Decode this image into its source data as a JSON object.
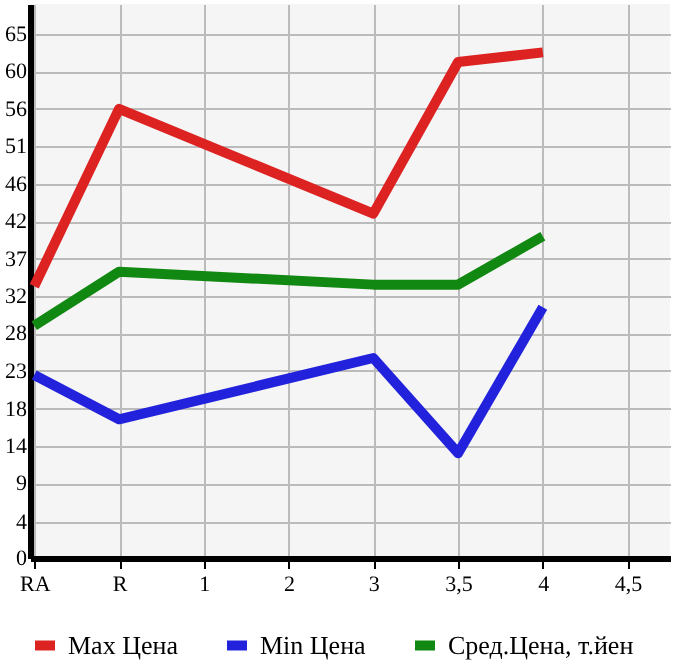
{
  "chart_data": {
    "type": "line",
    "categories": [
      "RA",
      "R",
      "1",
      "2",
      "3",
      "3,5",
      "4",
      "4,5"
    ],
    "series": [
      {
        "name": "Max Цена",
        "color": "#dd2222",
        "values": [
          33.7,
          55.7,
          null,
          null,
          42.7,
          61.5,
          62.7,
          null
        ]
      },
      {
        "name": "Min Цена",
        "color": "#2222dd",
        "values": [
          22.7,
          17.2,
          null,
          null,
          24.8,
          13.0,
          31.1,
          null
        ]
      },
      {
        "name": "Сред.Цена, т.йен",
        "color": "#118811",
        "values": [
          28.8,
          35.5,
          null,
          null,
          33.9,
          33.9,
          39.9,
          null
        ]
      }
    ],
    "ylim": [
      0,
      68.7
    ],
    "yticks": [
      0,
      {
        "value": 4.49,
        "label": "4"
      },
      {
        "value": 9.29,
        "label": "9"
      },
      {
        "value": 13.93,
        "label": "14"
      },
      {
        "value": 18.49,
        "label": "18"
      },
      {
        "value": 23.21,
        "label": "23"
      },
      {
        "value": 27.86,
        "label": "28"
      },
      {
        "value": 32.5,
        "label": "32"
      },
      {
        "value": 37.14,
        "label": "37"
      },
      {
        "value": 41.79,
        "label": "42"
      },
      {
        "value": 46.43,
        "label": "46"
      },
      {
        "value": 51.07,
        "label": "51"
      },
      {
        "value": 55.71,
        "label": "56"
      },
      {
        "value": 60.36,
        "label": "60"
      },
      {
        "value": 65,
        "label": "65"
      }
    ],
    "grid": true,
    "legend": "bottom",
    "marker": "none",
    "line_style": "solid"
  }
}
